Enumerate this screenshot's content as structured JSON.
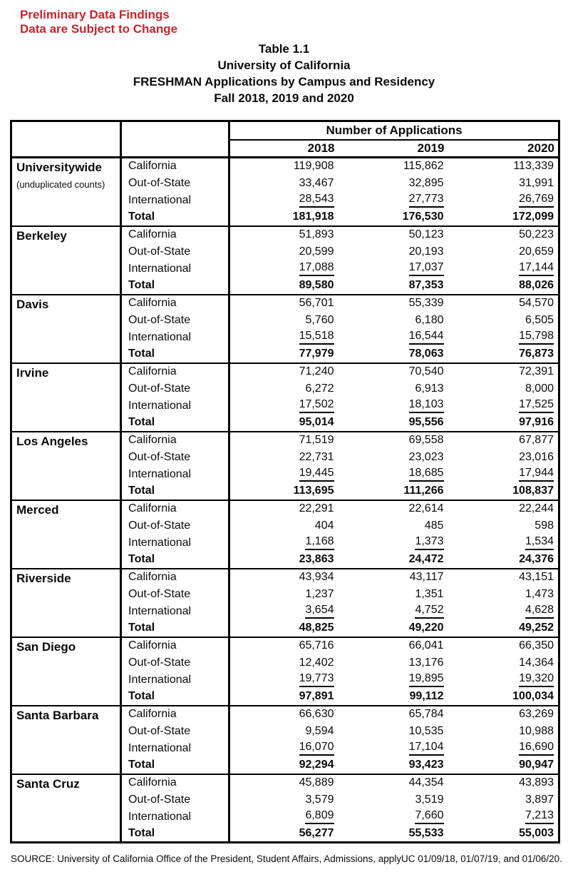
{
  "notice": {
    "line1": "Preliminary Data Findings",
    "line2": "Data are Subject to Change",
    "color": "#C8232A"
  },
  "title": {
    "lines": [
      "Table 1.1",
      "University of California",
      "FRESHMAN Applications by Campus and Residency",
      "Fall 2018, 2019 and 2020"
    ]
  },
  "table": {
    "group_header": "Number of Applications",
    "years": [
      "2018",
      "2019",
      "2020"
    ],
    "campuses": [
      {
        "name": "Universitywide",
        "note": "(unduplicated counts)",
        "rows": [
          {
            "label": "California",
            "style": "plain",
            "values": [
              "119,908",
              "115,862",
              "113,339"
            ]
          },
          {
            "label": "Out-of-State",
            "style": "plain",
            "values": [
              "33,467",
              "32,895",
              "31,991"
            ]
          },
          {
            "label": "International",
            "style": "underline",
            "values": [
              "28,543",
              "27,773",
              "26,769"
            ]
          },
          {
            "label": "Total",
            "style": "total",
            "values": [
              "181,918",
              "176,530",
              "172,099"
            ]
          }
        ]
      },
      {
        "name": "Berkeley",
        "rows": [
          {
            "label": "California",
            "style": "plain",
            "values": [
              "51,893",
              "50,123",
              "50,223"
            ]
          },
          {
            "label": "Out-of-State",
            "style": "plain",
            "values": [
              "20,599",
              "20,193",
              "20,659"
            ]
          },
          {
            "label": "International",
            "style": "underline",
            "values": [
              "17,088",
              "17,037",
              "17,144"
            ]
          },
          {
            "label": "Total",
            "style": "total",
            "values": [
              "89,580",
              "87,353",
              "88,026"
            ]
          }
        ]
      },
      {
        "name": "Davis",
        "rows": [
          {
            "label": "California",
            "style": "plain",
            "values": [
              "56,701",
              "55,339",
              "54,570"
            ]
          },
          {
            "label": "Out-of-State",
            "style": "plain",
            "values": [
              "5,760",
              "6,180",
              "6,505"
            ]
          },
          {
            "label": "International",
            "style": "underline",
            "values": [
              "15,518",
              "16,544",
              "15,798"
            ]
          },
          {
            "label": "Total",
            "style": "total",
            "values": [
              "77,979",
              "78,063",
              "76,873"
            ]
          }
        ]
      },
      {
        "name": "Irvine",
        "rows": [
          {
            "label": "California",
            "style": "plain",
            "values": [
              "71,240",
              "70,540",
              "72,391"
            ]
          },
          {
            "label": "Out-of-State",
            "style": "plain",
            "values": [
              "6,272",
              "6,913",
              "8,000"
            ]
          },
          {
            "label": "International",
            "style": "underline",
            "values": [
              "17,502",
              "18,103",
              "17,525"
            ]
          },
          {
            "label": "Total",
            "style": "total",
            "values": [
              "95,014",
              "95,556",
              "97,916"
            ]
          }
        ]
      },
      {
        "name": "Los Angeles",
        "rows": [
          {
            "label": "California",
            "style": "plain",
            "values": [
              "71,519",
              "69,558",
              "67,877"
            ]
          },
          {
            "label": "Out-of-State",
            "style": "plain",
            "values": [
              "22,731",
              "23,023",
              "23,016"
            ]
          },
          {
            "label": "International",
            "style": "underline",
            "values": [
              "19,445",
              "18,685",
              "17,944"
            ]
          },
          {
            "label": "Total",
            "style": "total",
            "values": [
              "113,695",
              "111,266",
              "108,837"
            ]
          }
        ]
      },
      {
        "name": "Merced",
        "rows": [
          {
            "label": "California",
            "style": "plain",
            "values": [
              "22,291",
              "22,614",
              "22,244"
            ]
          },
          {
            "label": "Out-of-State",
            "style": "plain",
            "values": [
              "404",
              "485",
              "598"
            ]
          },
          {
            "label": "International",
            "style": "underline",
            "values": [
              "1,168",
              "1,373",
              "1,534"
            ]
          },
          {
            "label": "Total",
            "style": "total",
            "values": [
              "23,863",
              "24,472",
              "24,376"
            ]
          }
        ]
      },
      {
        "name": "Riverside",
        "rows": [
          {
            "label": "California",
            "style": "plain",
            "values": [
              "43,934",
              "43,117",
              "43,151"
            ]
          },
          {
            "label": "Out-of-State",
            "style": "plain",
            "values": [
              "1,237",
              "1,351",
              "1,473"
            ]
          },
          {
            "label": "International",
            "style": "underline",
            "values": [
              "3,654",
              "4,752",
              "4,628"
            ]
          },
          {
            "label": "Total",
            "style": "total",
            "values": [
              "48,825",
              "49,220",
              "49,252"
            ]
          }
        ]
      },
      {
        "name": "San Diego",
        "rows": [
          {
            "label": "California",
            "style": "plain",
            "values": [
              "65,716",
              "66,041",
              "66,350"
            ]
          },
          {
            "label": "Out-of-State",
            "style": "plain",
            "values": [
              "12,402",
              "13,176",
              "14,364"
            ]
          },
          {
            "label": "International",
            "style": "underline",
            "values": [
              "19,773",
              "19,895",
              "19,320"
            ]
          },
          {
            "label": "Total",
            "style": "total",
            "values": [
              "97,891",
              "99,112",
              "100,034"
            ]
          }
        ]
      },
      {
        "name": "Santa Barbara",
        "rows": [
          {
            "label": "California",
            "style": "plain",
            "values": [
              "66,630",
              "65,784",
              "63,269"
            ]
          },
          {
            "label": "Out-of-State",
            "style": "plain",
            "values": [
              "9,594",
              "10,535",
              "10,988"
            ]
          },
          {
            "label": "International",
            "style": "underline",
            "values": [
              "16,070",
              "17,104",
              "16,690"
            ]
          },
          {
            "label": "Total",
            "style": "total",
            "values": [
              "92,294",
              "93,423",
              "90,947"
            ]
          }
        ]
      },
      {
        "name": "Santa Cruz",
        "rows": [
          {
            "label": "California",
            "style": "plain",
            "values": [
              "45,889",
              "44,354",
              "43,893"
            ]
          },
          {
            "label": "Out-of-State",
            "style": "plain",
            "values": [
              "3,579",
              "3,519",
              "3,897"
            ]
          },
          {
            "label": "International",
            "style": "underline",
            "values": [
              "6,809",
              "7,660",
              "7,213"
            ]
          },
          {
            "label": "Total",
            "style": "total",
            "values": [
              "56,277",
              "55,533",
              "55,003"
            ]
          }
        ]
      }
    ]
  },
  "source": "SOURCE: University of California Office of the President, Student Affairs, Admissions, applyUC 01/09/18, 01/07/19, and 01/06/20."
}
